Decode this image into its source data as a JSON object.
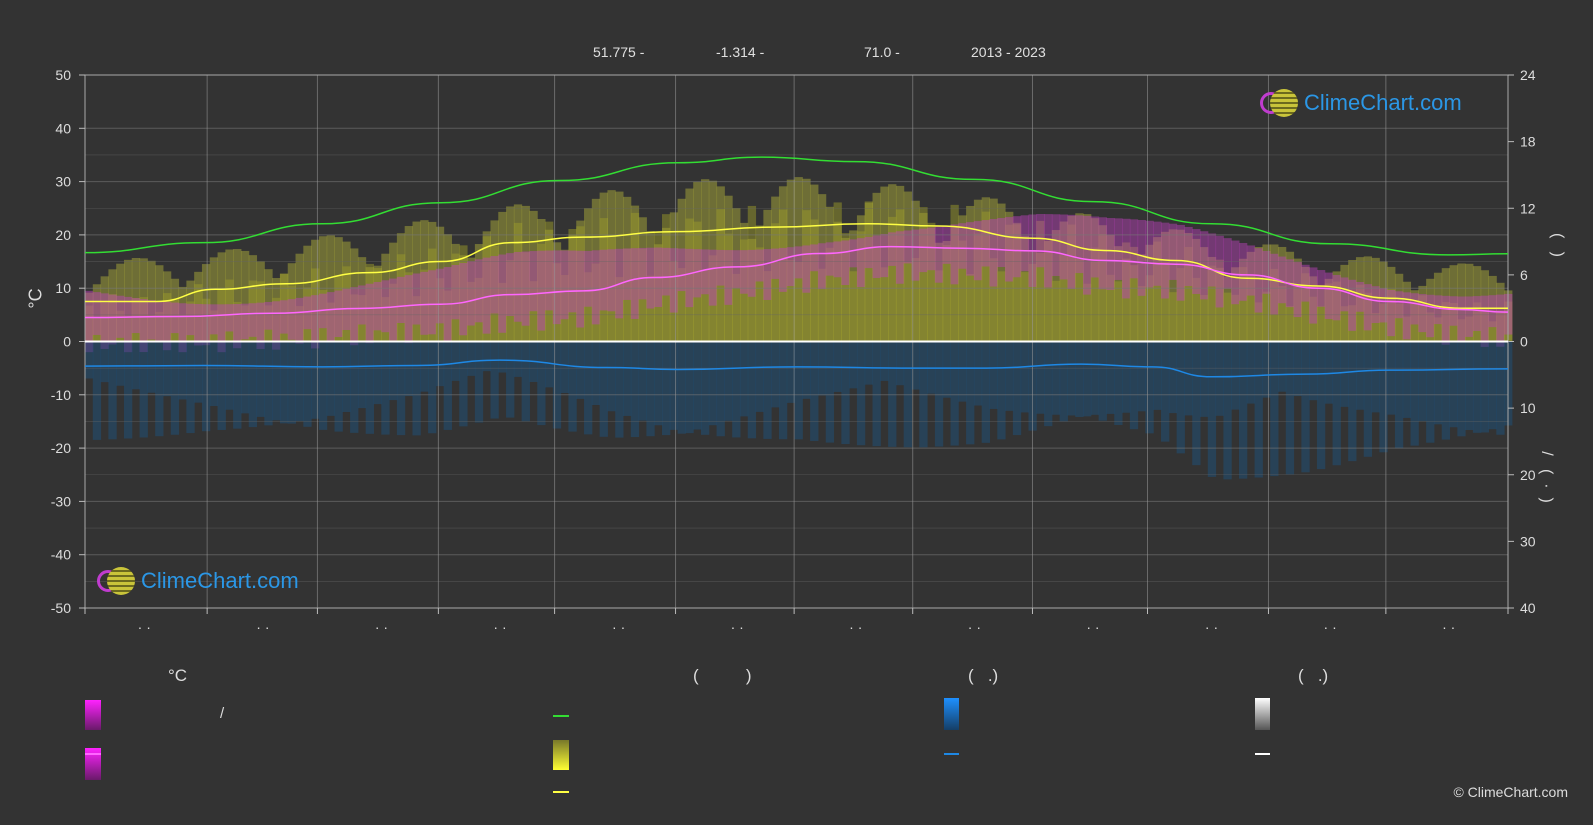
{
  "header": {
    "latitude": "51.775 -",
    "longitude": "-1.314 -",
    "elevation": "71.0 -",
    "years": "2013 - 2023"
  },
  "brand": {
    "logo_text": "ClimeChart.com",
    "copyright": "© ClimeChart.com"
  },
  "axes": {
    "left_title": "°C",
    "right_top_title": "(   )",
    "right_bottom_title": "/   (  ·  )"
  },
  "legend": {
    "col1_head": "°C",
    "col1_item1": "/",
    "col2_head": "(          )",
    "col3_head": "(   .)",
    "col4_head": "(   .)"
  },
  "colors": {
    "background": "#333333",
    "daylight": "#33dd33",
    "sunshine": "#ffff44",
    "temp_mean": "#ff66ff",
    "precip": "#1e88e5",
    "snow": "#ffffff",
    "temp_band": "#c040c0",
    "sun_band": "#b5b53a"
  },
  "chart_data": {
    "type": "line",
    "x": [
      0.5,
      1.5,
      2.5,
      3.5,
      4.5,
      5.5,
      6.5,
      7.5,
      8.5,
      9.5,
      10.5,
      11.5
    ],
    "x_tick_labels": [
      "· ·",
      "· ·",
      "· ·",
      "· ·",
      "· ·",
      "· ·",
      "· ·",
      "· ·",
      "· ·",
      "· ·",
      "· ·",
      "· ·"
    ],
    "left_axis": {
      "label": "°C",
      "ylim": [
        -50,
        50
      ],
      "ticks": [
        50,
        40,
        30,
        20,
        10,
        0,
        -10,
        -20,
        -30,
        -40,
        -50
      ]
    },
    "right_axis_top": {
      "ylim": [
        0,
        24
      ],
      "ticks": [
        24,
        18,
        12,
        6,
        0
      ]
    },
    "right_axis_bottom": {
      "ylim": [
        0,
        40
      ],
      "ticks": [
        0,
        10,
        20,
        30,
        40
      ]
    },
    "grid": true,
    "series": [
      {
        "axis": "hours",
        "color": "#33dd33",
        "x": [
          0,
          1,
          2,
          3,
          4,
          5,
          5.7,
          6.5,
          7.5,
          8.5,
          9.5,
          10.5,
          11.5,
          12
        ],
        "values": [
          8.0,
          8.9,
          10.6,
          12.5,
          14.5,
          16.1,
          16.6,
          16.2,
          14.6,
          12.6,
          10.6,
          8.8,
          7.8,
          7.9
        ]
      },
      {
        "axis": "hours",
        "color": "#ffff44",
        "x": [
          0,
          0.6,
          1.1,
          1.7,
          2.4,
          3.0,
          3.6,
          4.2,
          5.0,
          5.8,
          6.6,
          7.2,
          8.0,
          8.6,
          9.2,
          9.8,
          10.4,
          11.0,
          11.6,
          12
        ],
        "values": [
          3.6,
          3.6,
          4.7,
          5.2,
          6.2,
          7.2,
          8.9,
          9.4,
          9.9,
          10.3,
          10.6,
          10.4,
          9.3,
          8.2,
          7.3,
          5.7,
          5.0,
          3.9,
          3.0,
          3.0
        ]
      },
      {
        "axis": "temp",
        "color": "#ff66ff",
        "x": [
          0,
          0.8,
          1.6,
          2.3,
          3.0,
          3.6,
          4.2,
          4.8,
          5.5,
          6.2,
          6.8,
          7.4,
          8.0,
          8.6,
          9.2,
          9.8,
          10.4,
          11.0,
          11.6,
          12
        ],
        "values": [
          4.5,
          4.7,
          5.3,
          6.2,
          7.0,
          8.8,
          9.5,
          12.0,
          14.0,
          16.5,
          17.8,
          17.5,
          17.0,
          15.2,
          14.5,
          12.5,
          10.0,
          7.5,
          6.0,
          5.5
        ]
      },
      {
        "axis": "precip",
        "color": "#1e88e5",
        "x": [
          0,
          1,
          2,
          2.8,
          3.5,
          4.4,
          5.0,
          6.0,
          7.0,
          7.6,
          8.4,
          9.0,
          9.5,
          10.3,
          11.0,
          12
        ],
        "values": [
          3.7,
          3.6,
          3.8,
          3.6,
          2.8,
          3.9,
          4.2,
          3.8,
          4.0,
          4.0,
          3.4,
          3.8,
          5.3,
          4.9,
          4.3,
          4.1
        ]
      }
    ]
  }
}
